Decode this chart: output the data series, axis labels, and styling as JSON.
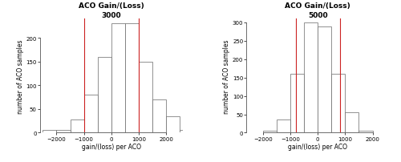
{
  "left": {
    "title": "ACO Gain/(Loss)\n3000",
    "bins": [
      -2500,
      -2000,
      -1500,
      -1000,
      -500,
      0,
      500,
      1000,
      1500,
      2000,
      2500
    ],
    "counts": [
      5,
      5,
      28,
      80,
      160,
      230,
      230,
      150,
      70,
      35,
      5
    ],
    "red_lines": [
      -1000,
      1000
    ],
    "xlim": [
      -2600,
      2600
    ],
    "ylim": [
      0,
      240
    ],
    "yticks": [
      0,
      50,
      100,
      150,
      200
    ],
    "xticks": [
      -2000,
      -1000,
      0,
      1000,
      2000
    ],
    "xlabel": "gain/(loss) per ACO",
    "ylabel": "number of ACO samples"
  },
  "right": {
    "title": "ACO Gain/(Loss)\n5000",
    "bins": [
      -2500,
      -2000,
      -1500,
      -1000,
      -500,
      0,
      500,
      1000,
      1500,
      2000,
      2500
    ],
    "counts": [
      0,
      5,
      35,
      160,
      300,
      290,
      160,
      55,
      5,
      0,
      0
    ],
    "red_lines": [
      -800,
      800
    ],
    "xlim": [
      -2600,
      2600
    ],
    "ylim": [
      0,
      310
    ],
    "yticks": [
      0,
      50,
      100,
      150,
      200,
      250,
      300
    ],
    "xticks": [
      -2000,
      -1000,
      0,
      1000,
      2000
    ],
    "xlabel": "gain/(loss) per ACO",
    "ylabel": "number of ACO samples"
  },
  "bar_color": "#ffffff",
  "bar_edge_color": "#666666",
  "red_line_color": "#cc2222",
  "bg_color": "#ffffff",
  "title_fontsize": 6.5,
  "label_fontsize": 5.5,
  "tick_fontsize": 5.0
}
